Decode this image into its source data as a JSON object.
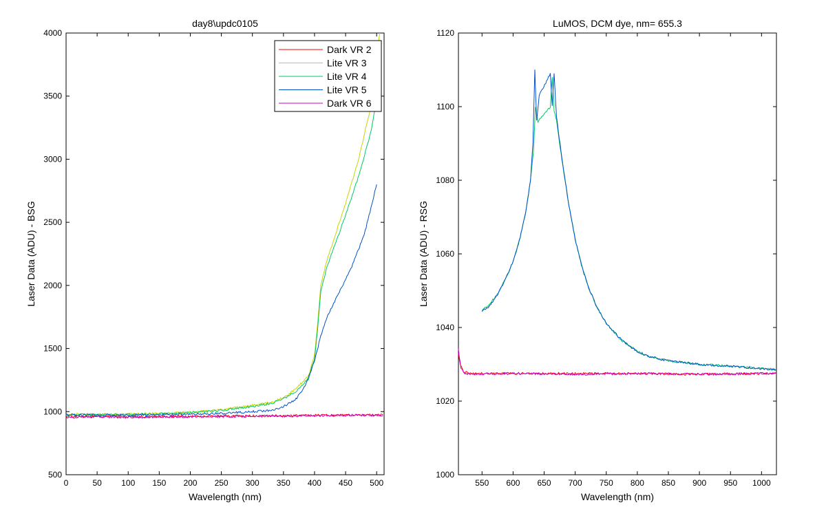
{
  "chart_data": [
    {
      "type": "line",
      "title": "day8\\updc0105",
      "xlabel": "Wavelength (nm)",
      "ylabel": "Laser Data (ADU) - BSG",
      "xlim": [
        0,
        512
      ],
      "ylim": [
        500,
        4000
      ],
      "xticks": [
        0,
        50,
        100,
        150,
        200,
        250,
        300,
        350,
        400,
        450,
        500
      ],
      "yticks": [
        500,
        1000,
        1500,
        2000,
        2500,
        3000,
        3500,
        4000
      ],
      "legend": "top-right",
      "series": [
        {
          "name": "Dark VR 2",
          "color": "#ff0000",
          "x": [
            0,
            50,
            100,
            150,
            200,
            250,
            300,
            350,
            400,
            450,
            510
          ],
          "y": [
            960,
            962,
            958,
            960,
            963,
            965,
            966,
            968,
            970,
            972,
            975
          ]
        },
        {
          "name": "Lite VR 3",
          "color": "#c8d400",
          "x": [
            0,
            50,
            100,
            150,
            200,
            250,
            300,
            330,
            350,
            370,
            390,
            400,
            405,
            410,
            420,
            430,
            450,
            470,
            490,
            505
          ],
          "y": [
            980,
            978,
            980,
            985,
            995,
            1015,
            1050,
            1075,
            1110,
            1180,
            1280,
            1450,
            1700,
            2000,
            2200,
            2350,
            2650,
            2980,
            3400,
            4000
          ]
        },
        {
          "name": "Lite VR 4",
          "color": "#00c864",
          "x": [
            0,
            50,
            100,
            150,
            200,
            250,
            300,
            330,
            350,
            370,
            390,
            400,
            405,
            410,
            420,
            430,
            450,
            470,
            490,
            505
          ],
          "y": [
            975,
            975,
            978,
            982,
            990,
            1010,
            1040,
            1065,
            1100,
            1160,
            1260,
            1420,
            1650,
            1950,
            2150,
            2280,
            2560,
            2850,
            3200,
            3600
          ]
        },
        {
          "name": "Lite VR 5",
          "color": "#0050c8",
          "x": [
            0,
            50,
            100,
            150,
            200,
            250,
            300,
            330,
            350,
            370,
            385,
            400,
            410,
            420,
            440,
            460,
            480,
            500
          ],
          "y": [
            975,
            972,
            972,
            975,
            978,
            985,
            1000,
            1010,
            1040,
            1100,
            1200,
            1400,
            1600,
            1750,
            1950,
            2150,
            2400,
            2800
          ]
        },
        {
          "name": "Dark VR 6",
          "color": "#c800c8",
          "x": [
            0,
            50,
            100,
            150,
            200,
            250,
            300,
            350,
            400,
            450,
            510
          ],
          "y": [
            955,
            958,
            955,
            958,
            960,
            962,
            963,
            965,
            968,
            970,
            972
          ]
        }
      ]
    },
    {
      "type": "line",
      "title": "LuMOS, DCM dye, nm= 655.3",
      "xlabel": "Wavelength (nm)",
      "ylabel": "Laser Data (ADU) - RSG",
      "xlim": [
        512,
        1024
      ],
      "ylim": [
        1000,
        1120
      ],
      "xticks": [
        550,
        600,
        650,
        700,
        750,
        800,
        850,
        900,
        950,
        1000
      ],
      "yticks": [
        1000,
        1020,
        1040,
        1060,
        1080,
        1100,
        1120
      ],
      "series": [
        {
          "color": "#ff0000",
          "x": [
            512,
            515,
            520,
            530,
            600,
            700,
            800,
            900,
            1000,
            1024
          ],
          "y": [
            1033,
            1030,
            1028,
            1027.5,
            1027.5,
            1027.5,
            1027.5,
            1027.3,
            1027.5,
            1027.5
          ]
        },
        {
          "color": "#c800c8",
          "x": [
            512,
            516,
            522,
            540,
            600,
            700,
            800,
            900,
            1000,
            1024
          ],
          "y": [
            1034,
            1029,
            1027.5,
            1027.3,
            1027.5,
            1027.3,
            1027.5,
            1027.3,
            1027.5,
            1027.5
          ]
        },
        {
          "color": "#00c864",
          "x": [
            550,
            560,
            570,
            580,
            590,
            600,
            610,
            620,
            628,
            633,
            636,
            640,
            660,
            663,
            666,
            670,
            680,
            690,
            700,
            710,
            720,
            735,
            750,
            775,
            800,
            820,
            850,
            900,
            950,
            1024
          ],
          "y": [
            1044.5,
            1046,
            1048,
            1050.5,
            1054,
            1058,
            1063.5,
            1071,
            1080,
            1088,
            1100,
            1096,
            1100,
            1108,
            1099,
            1096,
            1084,
            1073,
            1064,
            1057,
            1051.5,
            1045.5,
            1041,
            1036.5,
            1033.5,
            1032,
            1031,
            1030,
            1029.5,
            1028.5
          ]
        },
        {
          "color": "#0050c8",
          "x": [
            550,
            560,
            570,
            580,
            590,
            600,
            610,
            620,
            628,
            632,
            635,
            638,
            642,
            660,
            663,
            666,
            670,
            680,
            690,
            700,
            710,
            720,
            735,
            750,
            775,
            800,
            820,
            850,
            900,
            950,
            1024
          ],
          "y": [
            1044.5,
            1045.5,
            1047.5,
            1050.5,
            1054,
            1058,
            1063.5,
            1071,
            1080,
            1090,
            1110,
            1096,
            1103,
            1109,
            1100,
            1109,
            1097,
            1084.5,
            1073,
            1064,
            1057,
            1051.5,
            1045.5,
            1041,
            1036.5,
            1033.5,
            1032,
            1031,
            1030,
            1029.5,
            1028.5
          ]
        }
      ]
    }
  ]
}
